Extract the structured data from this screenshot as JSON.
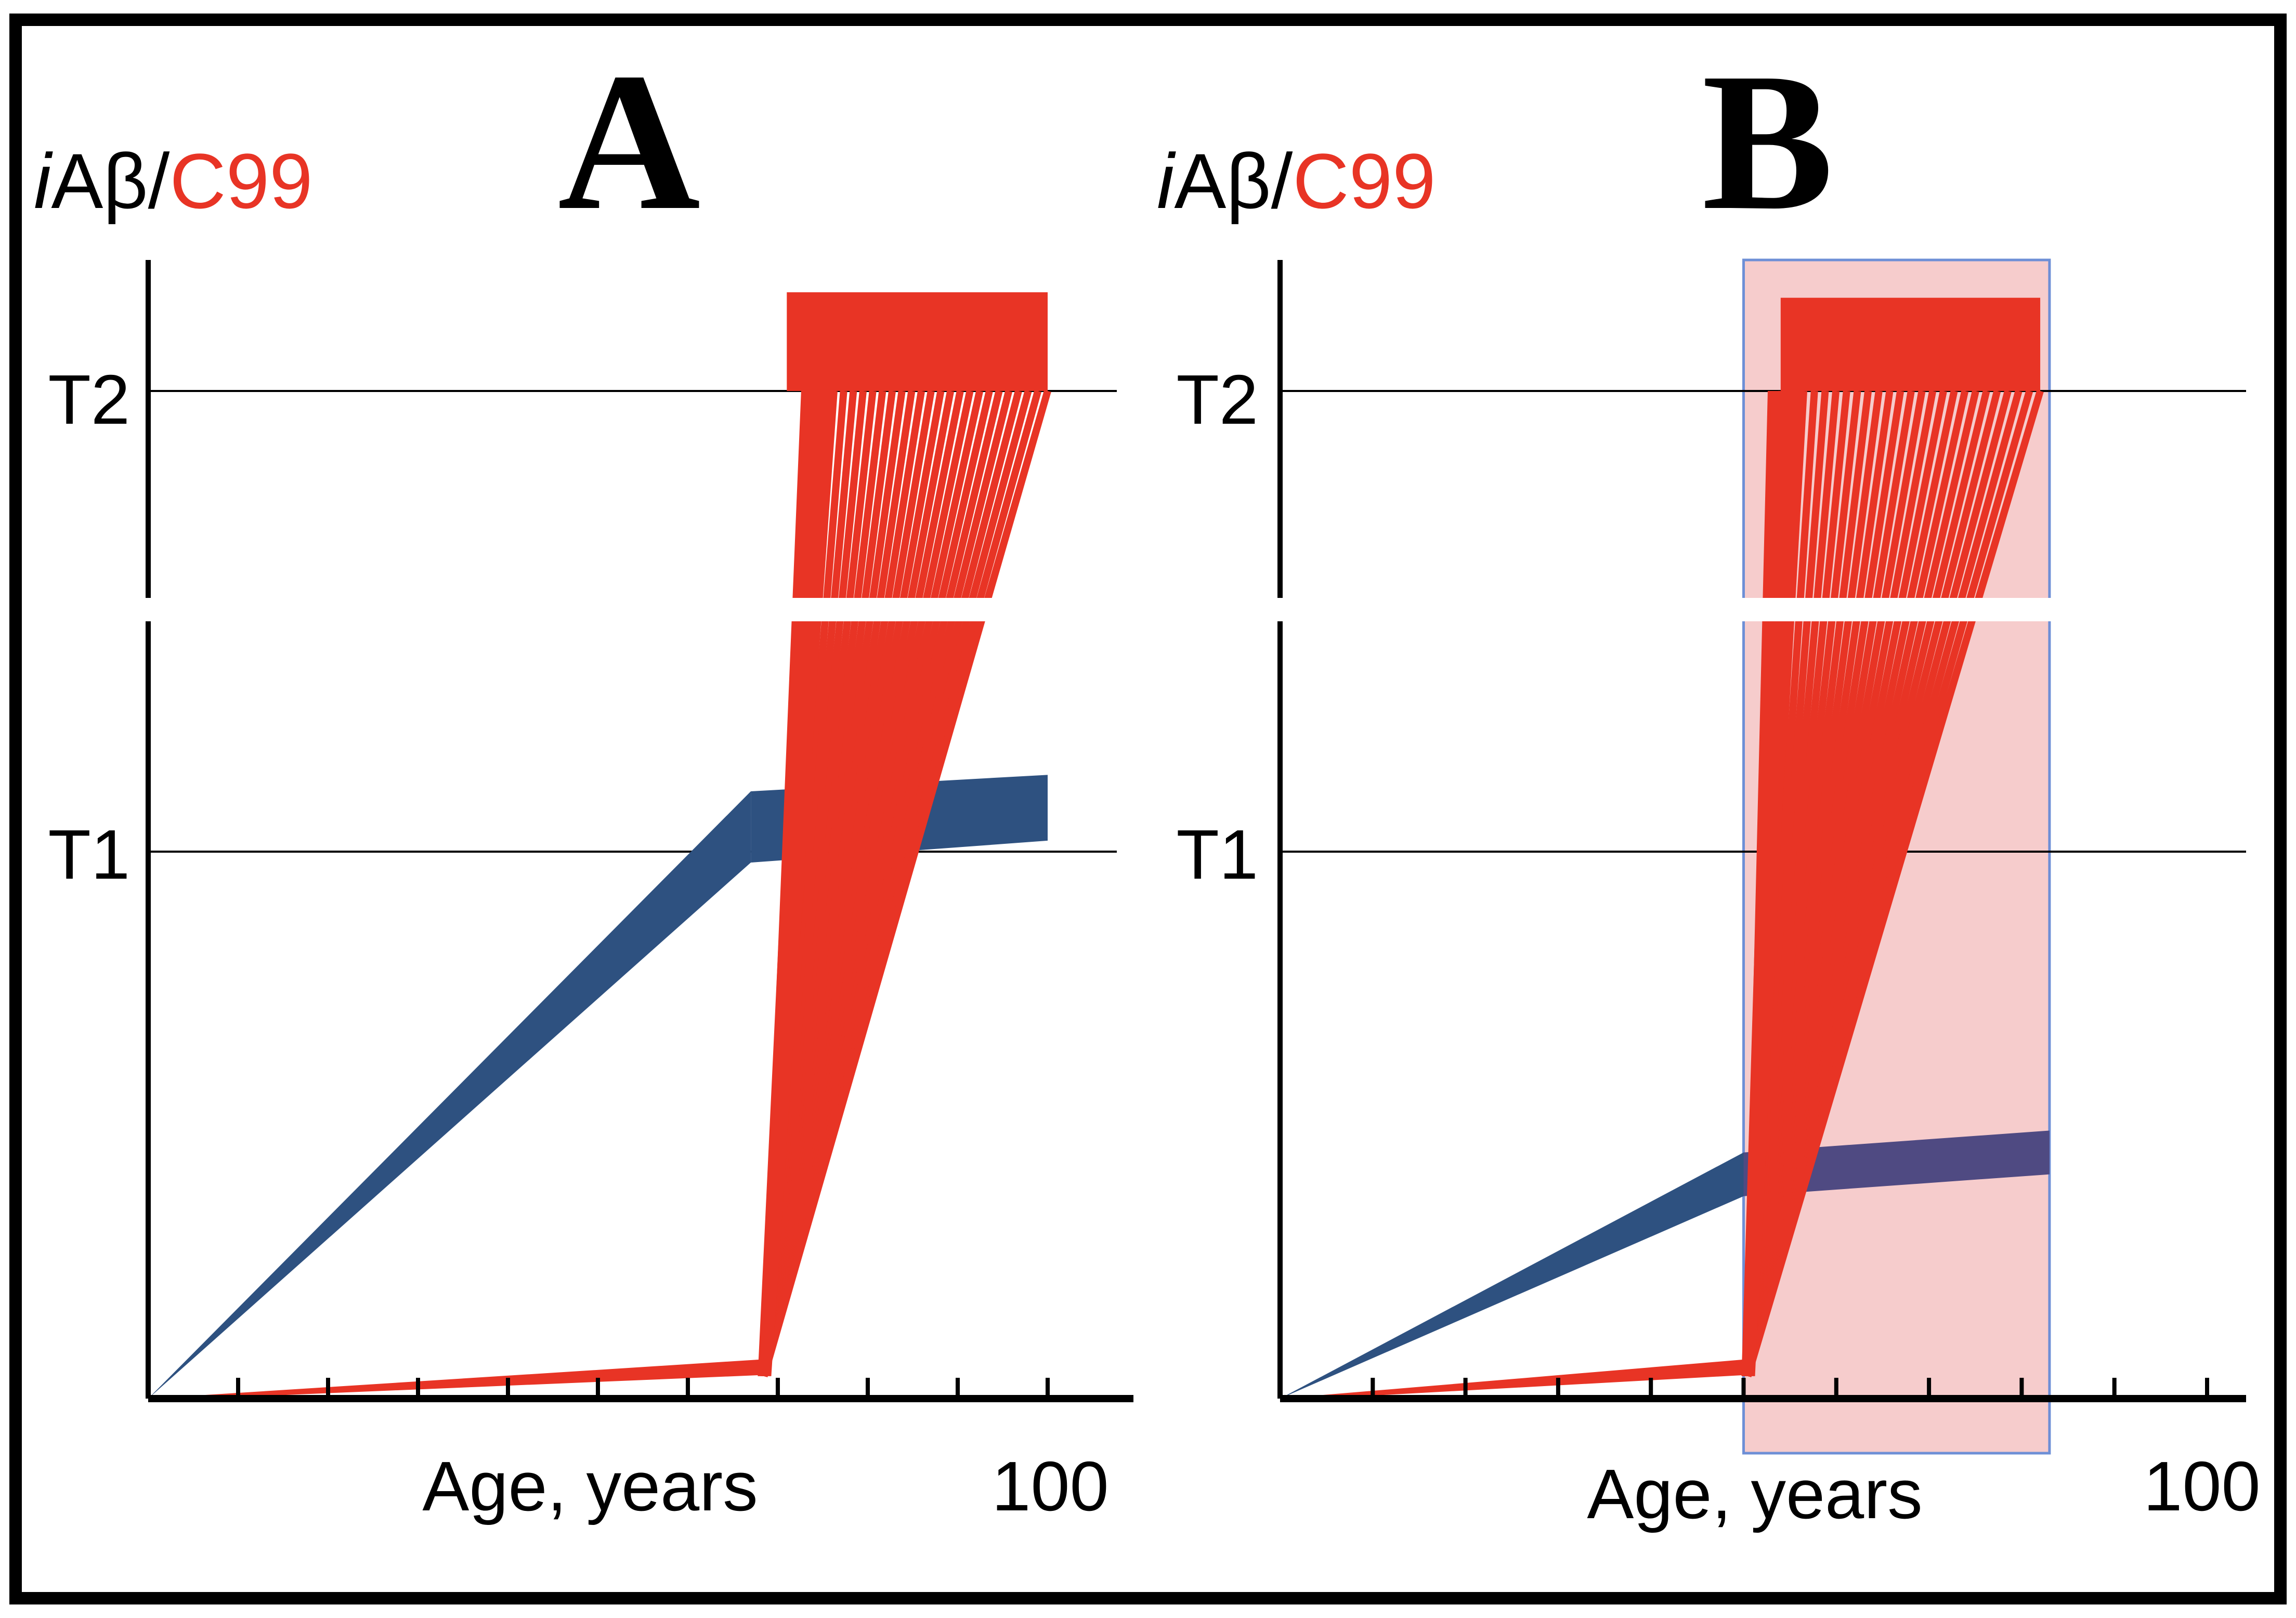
{
  "colors": {
    "iabeta": "#2E5180",
    "iabeta_b_late": "#4F4A82",
    "c99": "#E83425",
    "highlight_fill": "#F6CCCC",
    "highlight_border": "#6E8FD6",
    "axis": "#000000",
    "frame": "#000000"
  },
  "chart_data": [
    {
      "type": "line",
      "panel_label": "A",
      "ylabel": {
        "prefix": "i",
        "main": "Aβ",
        "sep": "/",
        "red": "C99"
      },
      "xlabel": "Age, years",
      "x_tick_label": "100",
      "xlim": [
        0,
        100
      ],
      "x_ticks": [
        0,
        10,
        20,
        30,
        40,
        50,
        60,
        70,
        80,
        90,
        100
      ],
      "y_axis_break": true,
      "thresholds": [
        {
          "name": "T1",
          "value": 1.0
        },
        {
          "name": "T2",
          "value": 1.84
        }
      ],
      "series": [
        {
          "key": "iabeta",
          "band": [
            {
              "x": 0,
              "low": 0,
              "high": 0
            },
            {
              "x": 67,
              "low": 0.98,
              "high": 1.11
            },
            {
              "x": 100,
              "low": 1.02,
              "high": 1.14
            }
          ]
        },
        {
          "key": "c99",
          "baseline": {
            "x0": 0,
            "x1": 68,
            "y1": 0.06
          },
          "fan_start_x": 68,
          "fan_start_y": 0.06,
          "fan_top_y": 1.84,
          "fan_top_x_range": [
            73,
            100
          ],
          "plateau": {
            "x0": 71,
            "x1": 100,
            "y0": 1.84,
            "y1": 2.02
          }
        }
      ]
    },
    {
      "type": "line",
      "panel_label": "B",
      "ylabel": {
        "prefix": "i",
        "main": "Aβ",
        "sep": "/",
        "red": "C99"
      },
      "xlabel": "Age, years",
      "x_tick_label": "100",
      "xlim": [
        0,
        100
      ],
      "x_ticks": [
        0,
        10,
        20,
        30,
        40,
        50,
        60,
        70,
        80,
        90,
        100
      ],
      "y_axis_break": true,
      "thresholds": [
        {
          "name": "T1",
          "value": 1.0
        },
        {
          "name": "T2",
          "value": 1.84
        }
      ],
      "highlight_region": {
        "x0": 50,
        "x1": 83
      },
      "series": [
        {
          "key": "iabeta",
          "band": [
            {
              "x": 0,
              "low": 0,
              "high": 0
            },
            {
              "x": 50,
              "low": 0.37,
              "high": 0.45
            },
            {
              "x": 83,
              "low": 0.41,
              "high": 0.49
            }
          ]
        },
        {
          "key": "c99",
          "baseline": {
            "x0": 0,
            "x1": 50,
            "y1": 0.06
          },
          "fan_start_x": 50,
          "fan_start_y": 0.06,
          "fan_top_y": 1.84,
          "fan_top_x_range": [
            53,
            82
          ],
          "plateau": {
            "x0": 54,
            "x1": 82,
            "y0": 1.84,
            "y1": 2.01
          }
        }
      ]
    }
  ]
}
